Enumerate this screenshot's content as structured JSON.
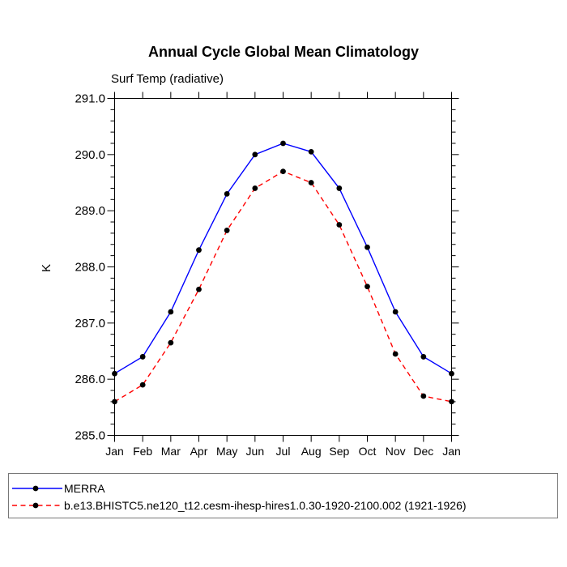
{
  "chart_data": {
    "type": "line",
    "title": "Annual Cycle Global Mean Climatology",
    "subtitle": "Surf Temp (radiative)",
    "ylabel": "K",
    "xlabel": "",
    "categories": [
      "Jan",
      "Feb",
      "Mar",
      "Apr",
      "May",
      "Jun",
      "Jul",
      "Aug",
      "Sep",
      "Oct",
      "Nov",
      "Dec",
      "Jan"
    ],
    "ylim": [
      285.0,
      291.0
    ],
    "ytick_step": 1.0,
    "yminor_step": 0.2,
    "ytick_labels": [
      "285.0",
      "286.0",
      "287.0",
      "288.0",
      "289.0",
      "290.0",
      "291.0"
    ],
    "grid": false,
    "legend_position": "bottom",
    "axis_color": "#000000",
    "marker_color": "#000000",
    "series": [
      {
        "name": "MERRA",
        "color": "#0000ff",
        "line_style": "solid",
        "marker": "filled-circle",
        "values": [
          286.1,
          286.4,
          287.2,
          288.3,
          289.3,
          290.0,
          290.2,
          290.05,
          289.4,
          288.35,
          287.2,
          286.4,
          286.1
        ]
      },
      {
        "name": "b.e13.BHISTC5.ne120_t12.cesm-ihesp-hires1.0.30-1920-2100.002 (1921-1926)",
        "color": "#ff0000",
        "line_style": "dashed",
        "marker": "filled-circle",
        "values": [
          285.6,
          285.9,
          286.65,
          287.6,
          288.65,
          289.4,
          289.7,
          289.5,
          288.75,
          287.65,
          286.45,
          285.7,
          285.6
        ]
      }
    ]
  }
}
